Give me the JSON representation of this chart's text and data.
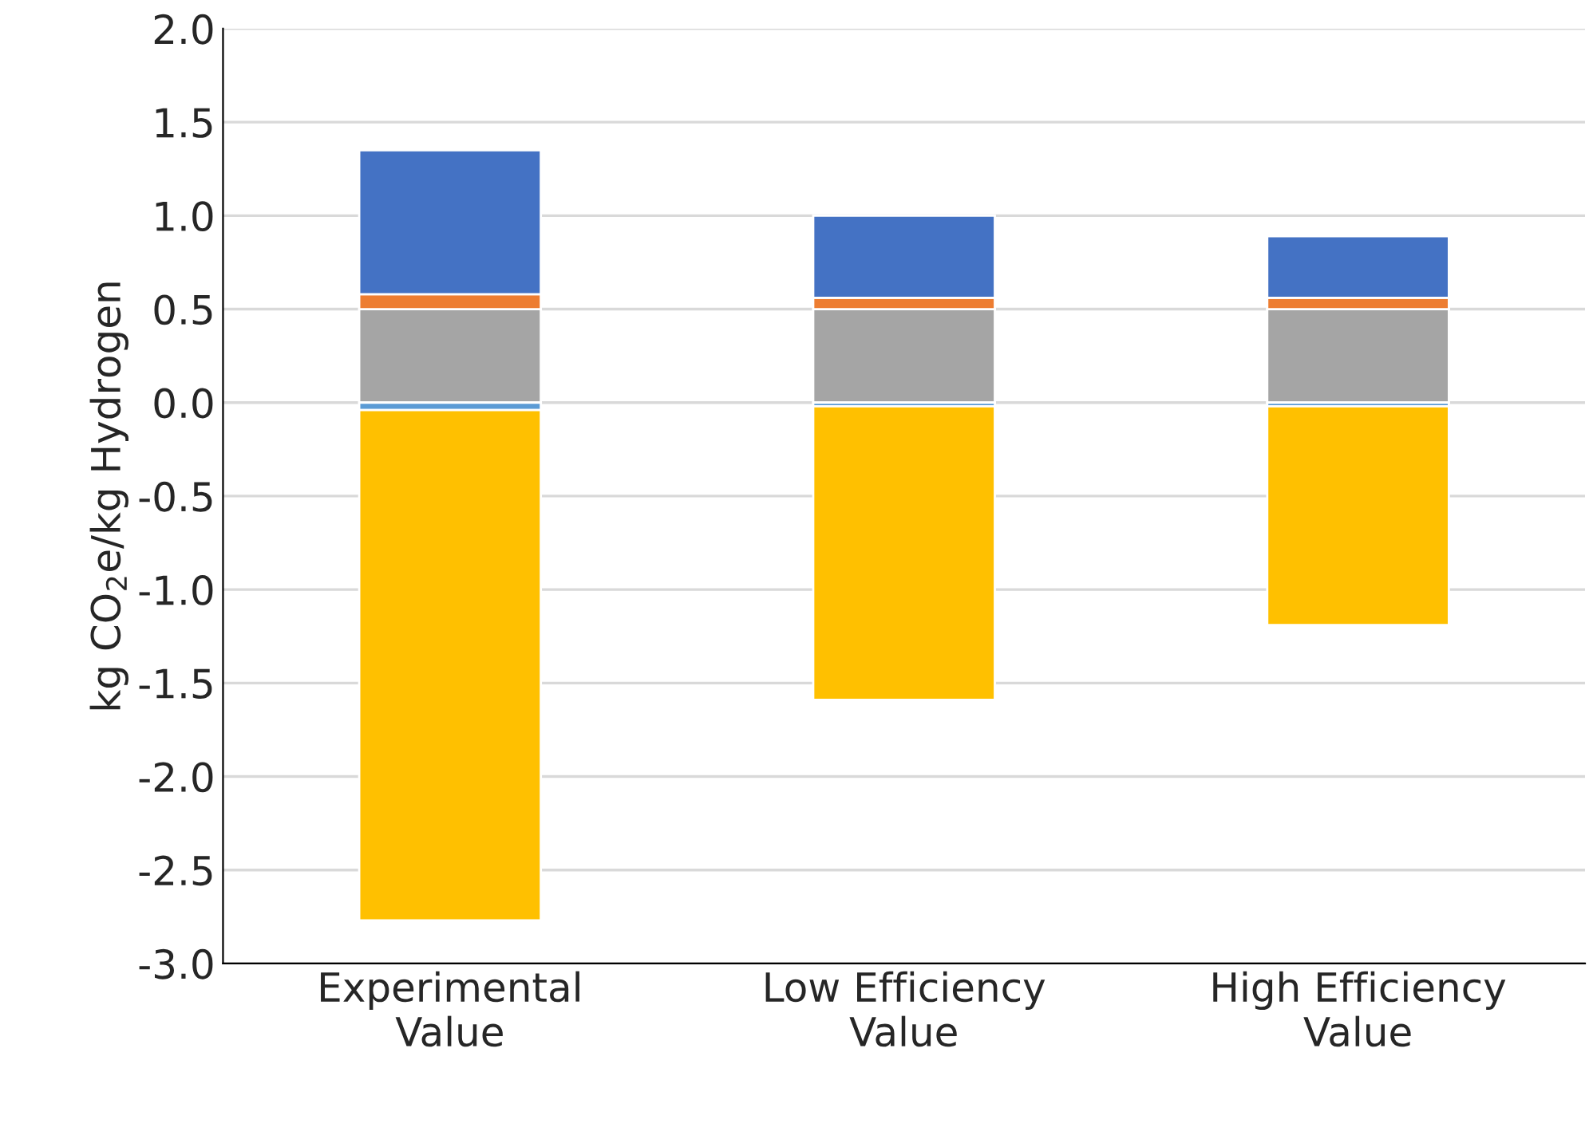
{
  "chart_data": {
    "type": "bar",
    "stacked": true,
    "ylabel": "kg CO$_{2}$e/kg Hydrogen",
    "categories": [
      "Experimental\nValue",
      "Low Efficiency\nValue",
      "High Efficiency\nValue"
    ],
    "series": [
      {
        "color": "#a5a5a5",
        "values": [
          0.5,
          0.5,
          0.5
        ]
      },
      {
        "color": "#ed7d31",
        "values": [
          0.08,
          0.06,
          0.06
        ]
      },
      {
        "color": "#4472c4",
        "values": [
          0.77,
          0.44,
          0.33
        ]
      },
      {
        "color": "#5b9bd5",
        "values": [
          -0.04,
          -0.02,
          -0.02
        ]
      },
      {
        "color": "#ffc000",
        "values": [
          -2.73,
          -1.57,
          -1.17
        ]
      }
    ],
    "ylim": [
      -3.0,
      2.0
    ],
    "yticks": [
      {
        "value": -3.0,
        "label": "-3.0"
      },
      {
        "value": -2.5,
        "label": "-2.5"
      },
      {
        "value": -2.0,
        "label": "-2.0"
      },
      {
        "value": -1.5,
        "label": "-1.5"
      },
      {
        "value": -1.0,
        "label": "-1.0"
      },
      {
        "value": -0.5,
        "label": "-0.5"
      },
      {
        "value": 0.0,
        "label": "0.0"
      },
      {
        "value": 0.5,
        "label": "0.5"
      },
      {
        "value": 1.0,
        "label": "1.0"
      },
      {
        "value": 1.5,
        "label": "1.5"
      },
      {
        "value": 2.0,
        "label": "2.0"
      }
    ],
    "grid": "y"
  }
}
